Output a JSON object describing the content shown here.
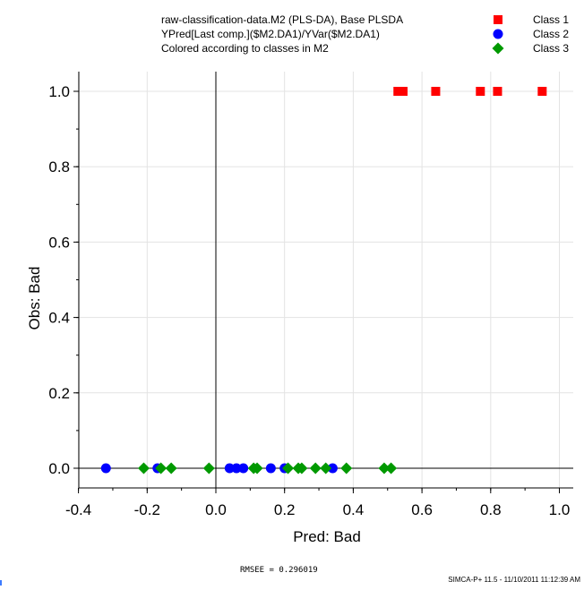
{
  "header": {
    "line1": "raw-classification-data.M2 (PLS-DA), Base PLSDA",
    "line2": "YPred[Last comp.]($M2.DA1)/YVar($M2.DA1)",
    "line3": "Colored according to classes in M2"
  },
  "colors": {
    "class1": "#ff0000",
    "class2": "#0000ff",
    "class3": "#009900",
    "grid": "#e3e3e3",
    "axis": "#000000"
  },
  "chart_data": {
    "type": "scatter",
    "xlabel": "Pred: Bad",
    "ylabel": "Obs: Bad",
    "xlim": [
      -0.4,
      1.0
    ],
    "ylim": [
      0.0,
      1.0
    ],
    "xticks": [
      -0.4,
      -0.2,
      0.0,
      0.2,
      0.4,
      0.6,
      0.8,
      1.0
    ],
    "xtick_labels": [
      "-0.4",
      "-0.2",
      "0.0",
      "0.2",
      "0.4",
      "0.6",
      "0.8",
      "1.0"
    ],
    "yticks": [
      0.0,
      0.2,
      0.4,
      0.6,
      0.8,
      1.0
    ],
    "ytick_labels": [
      "0.0",
      "0.2",
      "0.4",
      "0.6",
      "0.8",
      "1.0"
    ],
    "grid": true,
    "legend_position": "top-right",
    "series": [
      {
        "name": "Class 1",
        "marker": "square",
        "color": "#ff0000",
        "points": [
          [
            0.53,
            1.0
          ],
          [
            0.545,
            1.0
          ],
          [
            0.64,
            1.0
          ],
          [
            0.77,
            1.0
          ],
          [
            0.82,
            1.0
          ],
          [
            0.95,
            1.0
          ]
        ]
      },
      {
        "name": "Class 2",
        "marker": "circle",
        "color": "#0000ff",
        "points": [
          [
            -0.32,
            0.0
          ],
          [
            -0.17,
            0.0
          ],
          [
            0.04,
            0.0
          ],
          [
            0.06,
            0.0
          ],
          [
            0.08,
            0.0
          ],
          [
            0.16,
            0.0
          ],
          [
            0.2,
            0.0
          ],
          [
            0.34,
            0.0
          ]
        ]
      },
      {
        "name": "Class 3",
        "marker": "diamond",
        "color": "#009900",
        "points": [
          [
            -0.21,
            0.0
          ],
          [
            -0.16,
            0.0
          ],
          [
            -0.13,
            0.0
          ],
          [
            -0.02,
            0.0
          ],
          [
            0.11,
            0.0
          ],
          [
            0.12,
            0.0
          ],
          [
            0.21,
            0.0
          ],
          [
            0.24,
            0.0
          ],
          [
            0.25,
            0.0
          ],
          [
            0.29,
            0.0
          ],
          [
            0.32,
            0.0
          ],
          [
            0.38,
            0.0
          ],
          [
            0.49,
            0.0
          ],
          [
            0.51,
            0.0
          ]
        ]
      }
    ]
  },
  "rmsee": "RMSEE = 0.296019",
  "footer": "SIMCA-P+ 11.5 - 11/10/2011 11:12:39 AM"
}
